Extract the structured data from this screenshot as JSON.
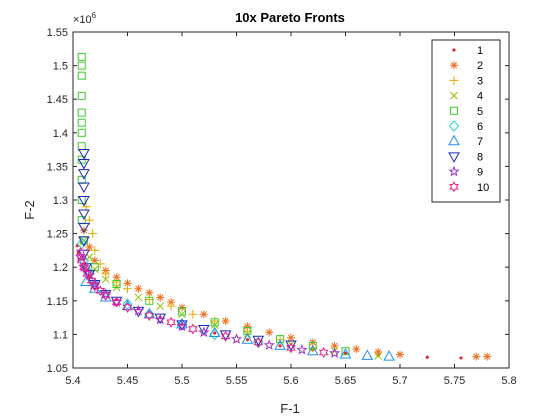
{
  "chart_data": {
    "type": "scatter",
    "title": "10x Pareto Fronts",
    "xlabel": "F-1",
    "ylabel": "F-2",
    "exponent_label": "×10",
    "exponent_power": "6",
    "xlim": [
      5.4,
      5.8
    ],
    "ylim": [
      1.05,
      1.55
    ],
    "x_ticks": [
      "5.4",
      "5.45",
      "5.5",
      "5.55",
      "5.6",
      "5.65",
      "5.7",
      "5.75",
      "5.8"
    ],
    "x_tick_values": [
      5.4,
      5.45,
      5.5,
      5.55,
      5.6,
      5.65,
      5.7,
      5.75,
      5.8
    ],
    "y_ticks": [
      "1.05",
      "1.1",
      "1.15",
      "1.2",
      "1.25",
      "1.3",
      "1.35",
      "1.4",
      "1.45",
      "1.5",
      "1.55"
    ],
    "y_tick_values": [
      1.05,
      1.1,
      1.15,
      1.2,
      1.25,
      1.3,
      1.35,
      1.4,
      1.45,
      1.5,
      1.55
    ],
    "grid": false,
    "legend_position": "top-right",
    "series": [
      {
        "name": "1",
        "marker": "dot",
        "color": "#e8262a",
        "x": [
          5.404,
          5.405,
          5.407,
          5.41,
          5.415,
          5.42,
          5.43,
          5.44,
          5.46,
          5.48,
          5.5,
          5.53,
          5.56,
          5.59,
          5.62,
          5.65,
          5.68,
          5.725,
          5.756
        ],
        "y": [
          1.232,
          1.222,
          1.212,
          1.2,
          1.188,
          1.177,
          1.163,
          1.152,
          1.138,
          1.125,
          1.115,
          1.102,
          1.092,
          1.083,
          1.077,
          1.072,
          1.069,
          1.066,
          1.065
        ]
      },
      {
        "name": "2",
        "marker": "asterisk",
        "color": "#f07020",
        "x": [
          5.41,
          5.415,
          5.42,
          5.43,
          5.44,
          5.45,
          5.46,
          5.47,
          5.48,
          5.49,
          5.5,
          5.52,
          5.54,
          5.56,
          5.58,
          5.6,
          5.62,
          5.64,
          5.66,
          5.68,
          5.7,
          5.77,
          5.78
        ],
        "y": [
          1.255,
          1.23,
          1.21,
          1.195,
          1.185,
          1.176,
          1.168,
          1.162,
          1.155,
          1.148,
          1.14,
          1.13,
          1.12,
          1.112,
          1.103,
          1.095,
          1.088,
          1.083,
          1.078,
          1.074,
          1.07,
          1.067,
          1.067
        ]
      },
      {
        "name": "3",
        "marker": "plus",
        "color": "#e8a800",
        "x": [
          5.412,
          5.415,
          5.418,
          5.42,
          5.425,
          5.43,
          5.44,
          5.45,
          5.47,
          5.49,
          5.51,
          5.53,
          5.56,
          5.59,
          5.62
        ],
        "y": [
          1.29,
          1.27,
          1.25,
          1.225,
          1.205,
          1.19,
          1.178,
          1.168,
          1.152,
          1.142,
          1.13,
          1.12,
          1.105,
          1.092,
          1.08
        ]
      },
      {
        "name": "4",
        "marker": "x",
        "color": "#8cc000",
        "x": [
          5.41,
          5.415,
          5.42,
          5.43,
          5.44,
          5.46,
          5.48,
          5.5,
          5.53,
          5.56,
          5.6,
          5.64,
          5.68
        ],
        "y": [
          1.24,
          1.215,
          1.197,
          1.182,
          1.17,
          1.155,
          1.142,
          1.13,
          1.114,
          1.1,
          1.085,
          1.075,
          1.068
        ]
      },
      {
        "name": "5",
        "marker": "square",
        "color": "#3ccc2e",
        "x": [
          5.408,
          5.408,
          5.408,
          5.408,
          5.408,
          5.408,
          5.408,
          5.408,
          5.408,
          5.408,
          5.408,
          5.408,
          5.41,
          5.42,
          5.44,
          5.47,
          5.5,
          5.53,
          5.56,
          5.59,
          5.62,
          5.65
        ],
        "y": [
          1.513,
          1.5,
          1.485,
          1.455,
          1.43,
          1.415,
          1.4,
          1.38,
          1.36,
          1.33,
          1.3,
          1.27,
          1.24,
          1.2,
          1.175,
          1.15,
          1.134,
          1.118,
          1.105,
          1.093,
          1.083,
          1.075
        ]
      },
      {
        "name": "6",
        "marker": "diamond",
        "color": "#1ed6cc",
        "x": [
          5.408,
          5.41,
          5.415,
          5.42,
          5.43,
          5.45,
          5.47,
          5.5,
          5.53,
          5.57
        ],
        "y": [
          1.235,
          1.21,
          1.19,
          1.175,
          1.16,
          1.145,
          1.13,
          1.115,
          1.1,
          1.088
        ]
      },
      {
        "name": "7",
        "marker": "triangle-up",
        "color": "#2490f0",
        "x": [
          5.412,
          5.42,
          5.43,
          5.45,
          5.47,
          5.5,
          5.53,
          5.56,
          5.59,
          5.62,
          5.65,
          5.67,
          5.69
        ],
        "y": [
          1.178,
          1.168,
          1.155,
          1.142,
          1.13,
          1.115,
          1.102,
          1.092,
          1.083,
          1.075,
          1.07,
          1.068,
          1.067
        ]
      },
      {
        "name": "8",
        "marker": "triangle-down",
        "color": "#1a2ab8",
        "x": [
          5.41,
          5.41,
          5.41,
          5.41,
          5.41,
          5.41,
          5.41,
          5.41,
          5.41,
          5.412,
          5.415,
          5.42,
          5.43,
          5.44,
          5.46,
          5.48,
          5.5,
          5.52,
          5.54,
          5.57,
          5.6
        ],
        "y": [
          1.37,
          1.355,
          1.34,
          1.32,
          1.3,
          1.28,
          1.26,
          1.24,
          1.22,
          1.2,
          1.19,
          1.175,
          1.16,
          1.15,
          1.135,
          1.125,
          1.115,
          1.108,
          1.1,
          1.092,
          1.085
        ]
      },
      {
        "name": "9",
        "marker": "star",
        "color": "#a030d0",
        "x": [
          5.407,
          5.41,
          5.415,
          5.42,
          5.43,
          5.44,
          5.46,
          5.48,
          5.5,
          5.52,
          5.55,
          5.58,
          5.61,
          5.64
        ],
        "y": [
          1.215,
          1.2,
          1.188,
          1.175,
          1.16,
          1.148,
          1.135,
          1.122,
          1.112,
          1.103,
          1.093,
          1.084,
          1.077,
          1.072
        ]
      },
      {
        "name": "10",
        "marker": "hexagram",
        "color": "#e8208a",
        "x": [
          5.407,
          5.408,
          5.41,
          5.413,
          5.417,
          5.42,
          5.425,
          5.43,
          5.44,
          5.45,
          5.47,
          5.49,
          5.51,
          5.54,
          5.57,
          5.6,
          5.63
        ],
        "y": [
          1.222,
          1.21,
          1.2,
          1.19,
          1.18,
          1.172,
          1.165,
          1.158,
          1.148,
          1.14,
          1.128,
          1.118,
          1.108,
          1.097,
          1.088,
          1.08,
          1.073
        ]
      }
    ]
  }
}
